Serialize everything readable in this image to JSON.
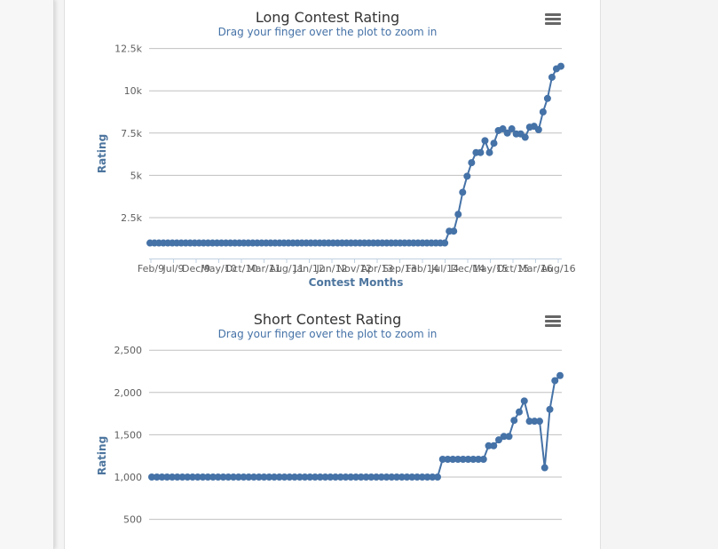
{
  "chart_data": [
    {
      "type": "line",
      "title": "Long Contest Rating",
      "subtitle": "Drag your finger over the plot to zoom in",
      "ylabel": "Rating",
      "xlabel": "Contest Months",
      "ylim": [
        0,
        12500
      ],
      "yticks": [
        "2.5k",
        "5k",
        "7.5k",
        "10k",
        "12.5k"
      ],
      "ytick_values": [
        2500,
        5000,
        7500,
        10000,
        12500
      ],
      "xtick_labels": [
        "Feb/9",
        "Jul/9",
        "Dec/9",
        "May/10",
        "Oct/10",
        "Mar/11",
        "Aug/11",
        "Jan/12",
        "Jun/12",
        "Nov/12",
        "Apr/13",
        "Sep/13",
        "Feb/14",
        "Jul/14",
        "Dec/14",
        "May/15",
        "Oct/15",
        "Mar/16",
        "Aug/16"
      ],
      "series": [
        {
          "values": [
            1000,
            1000,
            1000,
            1000,
            1000,
            1000,
            1000,
            1000,
            1000,
            1000,
            1000,
            1000,
            1000,
            1000,
            1000,
            1000,
            1000,
            1000,
            1000,
            1000,
            1000,
            1000,
            1000,
            1000,
            1000,
            1000,
            1000,
            1000,
            1000,
            1000,
            1000,
            1000,
            1000,
            1000,
            1000,
            1000,
            1000,
            1000,
            1000,
            1000,
            1000,
            1000,
            1000,
            1000,
            1000,
            1000,
            1000,
            1000,
            1000,
            1000,
            1000,
            1000,
            1000,
            1000,
            1000,
            1000,
            1000,
            1000,
            1000,
            1000,
            1000,
            1000,
            1000,
            1000,
            1000,
            1000,
            1000,
            1700,
            1700,
            2700,
            4000,
            4950,
            5750,
            6350,
            6350,
            7050,
            6350,
            6900,
            7650,
            7750,
            7500,
            7750,
            7450,
            7450,
            7250,
            7850,
            7900,
            7700,
            8750,
            9550,
            10800,
            11300,
            11450
          ]
        }
      ]
    },
    {
      "type": "line",
      "title": "Short Contest Rating",
      "subtitle": "Drag your finger over the plot to zoom in",
      "ylabel": "Rating",
      "ylim": [
        400,
        2500
      ],
      "yticks": [
        "500",
        "1,000",
        "1,500",
        "2,000",
        "2,500"
      ],
      "ytick_values": [
        500,
        1000,
        1500,
        2000,
        2500
      ],
      "series": [
        {
          "values": [
            1000,
            1000,
            1000,
            1000,
            1000,
            1000,
            1000,
            1000,
            1000,
            1000,
            1000,
            1000,
            1000,
            1000,
            1000,
            1000,
            1000,
            1000,
            1000,
            1000,
            1000,
            1000,
            1000,
            1000,
            1000,
            1000,
            1000,
            1000,
            1000,
            1000,
            1000,
            1000,
            1000,
            1000,
            1000,
            1000,
            1000,
            1000,
            1000,
            1000,
            1000,
            1000,
            1000,
            1000,
            1000,
            1000,
            1000,
            1000,
            1000,
            1000,
            1000,
            1000,
            1000,
            1000,
            1000,
            1000,
            1000,
            1210,
            1210,
            1210,
            1210,
            1210,
            1210,
            1210,
            1210,
            1210,
            1370,
            1370,
            1440,
            1480,
            1480,
            1670,
            1770,
            1900,
            1660,
            1660,
            1660,
            1110,
            1800,
            2140,
            2200
          ]
        }
      ]
    }
  ]
}
